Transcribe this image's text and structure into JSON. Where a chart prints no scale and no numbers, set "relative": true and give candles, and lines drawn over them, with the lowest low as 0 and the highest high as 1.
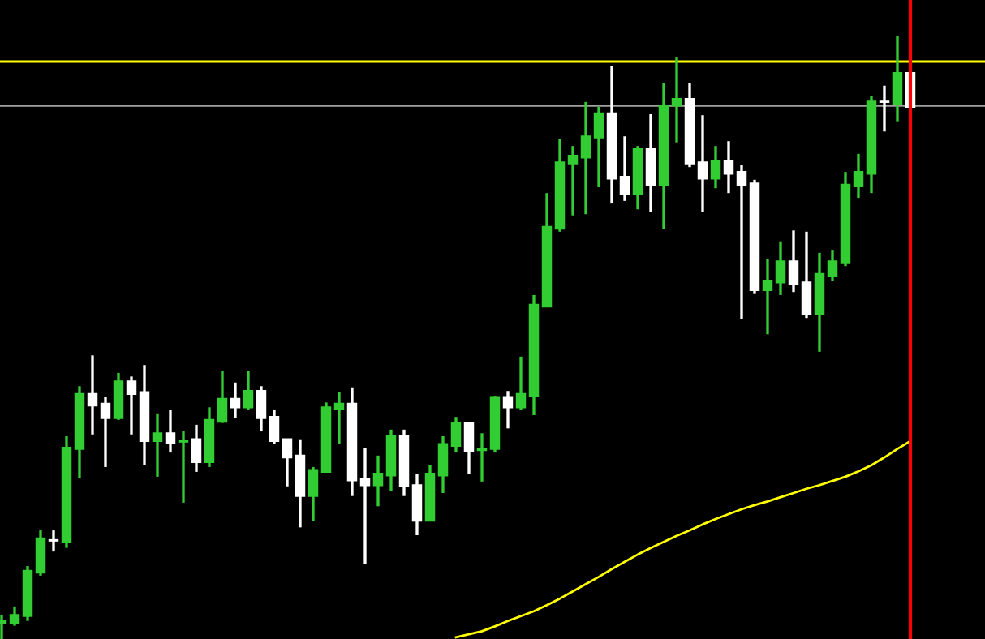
{
  "chart_data": {
    "type": "candlestick",
    "relative": true,
    "categories": [
      null,
      null,
      null,
      null,
      null,
      null,
      null,
      null,
      null,
      null,
      null,
      null,
      null,
      null,
      null,
      null,
      null,
      null,
      null,
      null,
      null,
      null,
      null,
      null,
      null,
      null,
      null,
      null,
      null,
      null,
      null,
      null,
      null,
      null,
      null,
      null,
      null,
      null,
      null,
      null,
      null,
      null,
      null,
      null,
      null,
      null,
      null,
      null,
      null,
      null,
      null,
      null,
      null,
      null,
      null,
      null,
      null,
      null,
      null,
      null,
      null,
      null,
      null,
      null,
      null,
      null,
      null,
      null,
      null,
      null,
      null
    ],
    "ohlc": [
      [
        0.027,
        0.04,
        0,
        0.03
      ],
      [
        0.027,
        0.054,
        0.022,
        0.04
      ],
      [
        0.038,
        0.121,
        0.03,
        0.113
      ],
      [
        0.11,
        0.18,
        0.105,
        0.167
      ],
      [
        0.164,
        0.18,
        0.145,
        0.163
      ],
      [
        0.161,
        0.336,
        0.151,
        0.317
      ],
      [
        0.315,
        0.419,
        0.266,
        0.406
      ],
      [
        0.406,
        0.47,
        0.339,
        0.387
      ],
      [
        0.39,
        0.401,
        0.285,
        0.366
      ],
      [
        0.366,
        0.441,
        0.363,
        0.427
      ],
      [
        0.427,
        0.435,
        0.339,
        0.406
      ],
      [
        0.409,
        0.454,
        0.288,
        0.328
      ],
      [
        0.328,
        0.374,
        0.269,
        0.341
      ],
      [
        0.341,
        0.379,
        0.309,
        0.325
      ],
      [
        0.327,
        0.344,
        0.226,
        0.328
      ],
      [
        0.331,
        0.355,
        0.277,
        0.293
      ],
      [
        0.293,
        0.384,
        0.285,
        0.363
      ],
      [
        0.36,
        0.444,
        0.358,
        0.398
      ],
      [
        0.398,
        0.425,
        0.366,
        0.384
      ],
      [
        0.384,
        0.444,
        0.379,
        0.411
      ],
      [
        0.411,
        0.419,
        0.344,
        0.366
      ],
      [
        0.368,
        0.379,
        0.323,
        0.328
      ],
      [
        0.331,
        0.331,
        0.253,
        0.301
      ],
      [
        0.304,
        0.331,
        0.185,
        0.237
      ],
      [
        0.237,
        0.285,
        0.196,
        0.28
      ],
      [
        0.277,
        0.392,
        0.277,
        0.384
      ],
      [
        0.382,
        0.409,
        0.323,
        0.39
      ],
      [
        0.39,
        0.417,
        0.237,
        0.263
      ],
      [
        0.266,
        0.317,
        0.124,
        0.255
      ],
      [
        0.255,
        0.304,
        0.22,
        0.274
      ],
      [
        0.271,
        0.347,
        0.245,
        0.336
      ],
      [
        0.336,
        0.347,
        0.237,
        0.253
      ],
      [
        0.255,
        0.274,
        0.172,
        0.196
      ],
      [
        0.196,
        0.288,
        0.196,
        0.274
      ],
      [
        0.271,
        0.336,
        0.242,
        0.323
      ],
      [
        0.32,
        0.368,
        0.309,
        0.358
      ],
      [
        0.358,
        0.36,
        0.274,
        0.312
      ],
      [
        0.313,
        0.341,
        0.261,
        0.315
      ],
      [
        0.315,
        0.403,
        0.309,
        0.401
      ],
      [
        0.401,
        0.411,
        0.349,
        0.384
      ],
      [
        0.384,
        0.468,
        0.379,
        0.406
      ],
      [
        0.403,
        0.57,
        0.371,
        0.554
      ],
      [
        0.551,
        0.739,
        0.551,
        0.683
      ],
      [
        0.68,
        0.828,
        0.675,
        0.79
      ],
      [
        0.788,
        0.817,
        0.702,
        0.801
      ],
      [
        0.798,
        0.89,
        0.704,
        0.833
      ],
      [
        0.831,
        0.882,
        0.75,
        0.871
      ],
      [
        0.871,
        0.949,
        0.723,
        0.763
      ],
      [
        0.766,
        0.833,
        0.726,
        0.737
      ],
      [
        0.737,
        0.817,
        0.712,
        0.812
      ],
      [
        0.812,
        0.871,
        0.707,
        0.753
      ],
      [
        0.753,
        0.922,
        0.68,
        0.884
      ],
      [
        0.884,
        0.965,
        0.823,
        0.895
      ],
      [
        0.895,
        0.922,
        0.782,
        0.788
      ],
      [
        0.79,
        0.868,
        0.707,
        0.763
      ],
      [
        0.763,
        0.817,
        0.747,
        0.793
      ],
      [
        0.793,
        0.825,
        0.739,
        0.771
      ],
      [
        0.774,
        0.785,
        0.53,
        0.753
      ],
      [
        0.755,
        0.761,
        0.573,
        0.578
      ],
      [
        0.578,
        0.629,
        0.505,
        0.594
      ],
      [
        0.591,
        0.659,
        0.57,
        0.626
      ],
      [
        0.626,
        0.677,
        0.575,
        0.589
      ],
      [
        0.591,
        0.675,
        0.532,
        0.538
      ],
      [
        0.538,
        0.64,
        0.476,
        0.605
      ],
      [
        0.602,
        0.645,
        0.594,
        0.626
      ],
      [
        0.624,
        0.774,
        0.618,
        0.753
      ],
      [
        0.75,
        0.804,
        0.731,
        0.774
      ],
      [
        0.771,
        0.9,
        0.739,
        0.892
      ],
      [
        0.892,
        0.917,
        0.841,
        0.89
      ],
      [
        0.887,
        1,
        0.858,
        0.938
      ],
      [
        0.938,
        0.938,
        0.882,
        0.882
      ]
    ],
    "colors": [
      "#32cd32",
      "#32cd32",
      "#32cd32",
      "#32cd32",
      "#ffffff",
      "#32cd32",
      "#32cd32",
      "#ffffff",
      "#ffffff",
      "#32cd32",
      "#ffffff",
      "#ffffff",
      "#32cd32",
      "#ffffff",
      "#32cd32",
      "#ffffff",
      "#32cd32",
      "#32cd32",
      "#ffffff",
      "#32cd32",
      "#ffffff",
      "#ffffff",
      "#ffffff",
      "#ffffff",
      "#32cd32",
      "#32cd32",
      "#32cd32",
      "#ffffff",
      "#ffffff",
      "#32cd32",
      "#32cd32",
      "#ffffff",
      "#ffffff",
      "#32cd32",
      "#32cd32",
      "#32cd32",
      "#ffffff",
      "#32cd32",
      "#32cd32",
      "#ffffff",
      "#32cd32",
      "#32cd32",
      "#32cd32",
      "#32cd32",
      "#32cd32",
      "#32cd32",
      "#32cd32",
      "#ffffff",
      "#ffffff",
      "#32cd32",
      "#ffffff",
      "#32cd32",
      "#32cd32",
      "#ffffff",
      "#ffffff",
      "#32cd32",
      "#ffffff",
      "#ffffff",
      "#ffffff",
      "#32cd32",
      "#32cd32",
      "#ffffff",
      "#ffffff",
      "#32cd32",
      "#32cd32",
      "#32cd32",
      "#32cd32",
      "#32cd32",
      "#ffffff",
      "#32cd32",
      "#ffffff"
    ],
    "series": [
      {
        "type": "line",
        "color": "#ffff00",
        "values": [
          null,
          null,
          null,
          null,
          null,
          null,
          null,
          null,
          null,
          null,
          null,
          null,
          null,
          null,
          null,
          null,
          null,
          null,
          null,
          null,
          null,
          null,
          null,
          null,
          null,
          null,
          null,
          null,
          null,
          null,
          null,
          null,
          null,
          null,
          null,
          0.003,
          0.008,
          0.013,
          0.021,
          0.03,
          0.038,
          0.046,
          0.056,
          0.067,
          0.079,
          0.091,
          0.103,
          0.116,
          0.128,
          0.14,
          0.151,
          0.161,
          0.171,
          0.18,
          0.19,
          0.199,
          0.207,
          0.215,
          0.222,
          0.228,
          0.235,
          0.242,
          0.249,
          0.255,
          0.262,
          0.269,
          0.278,
          0.288,
          0.301,
          0.315,
          0.328
        ]
      }
    ],
    "ref_lines": [
      {
        "axis": "y",
        "value": 0.957,
        "color": "#ffff00"
      },
      {
        "axis": "y",
        "value": 0.884,
        "color": "#a0a0a0"
      }
    ],
    "grid": false,
    "legend": false
  }
}
